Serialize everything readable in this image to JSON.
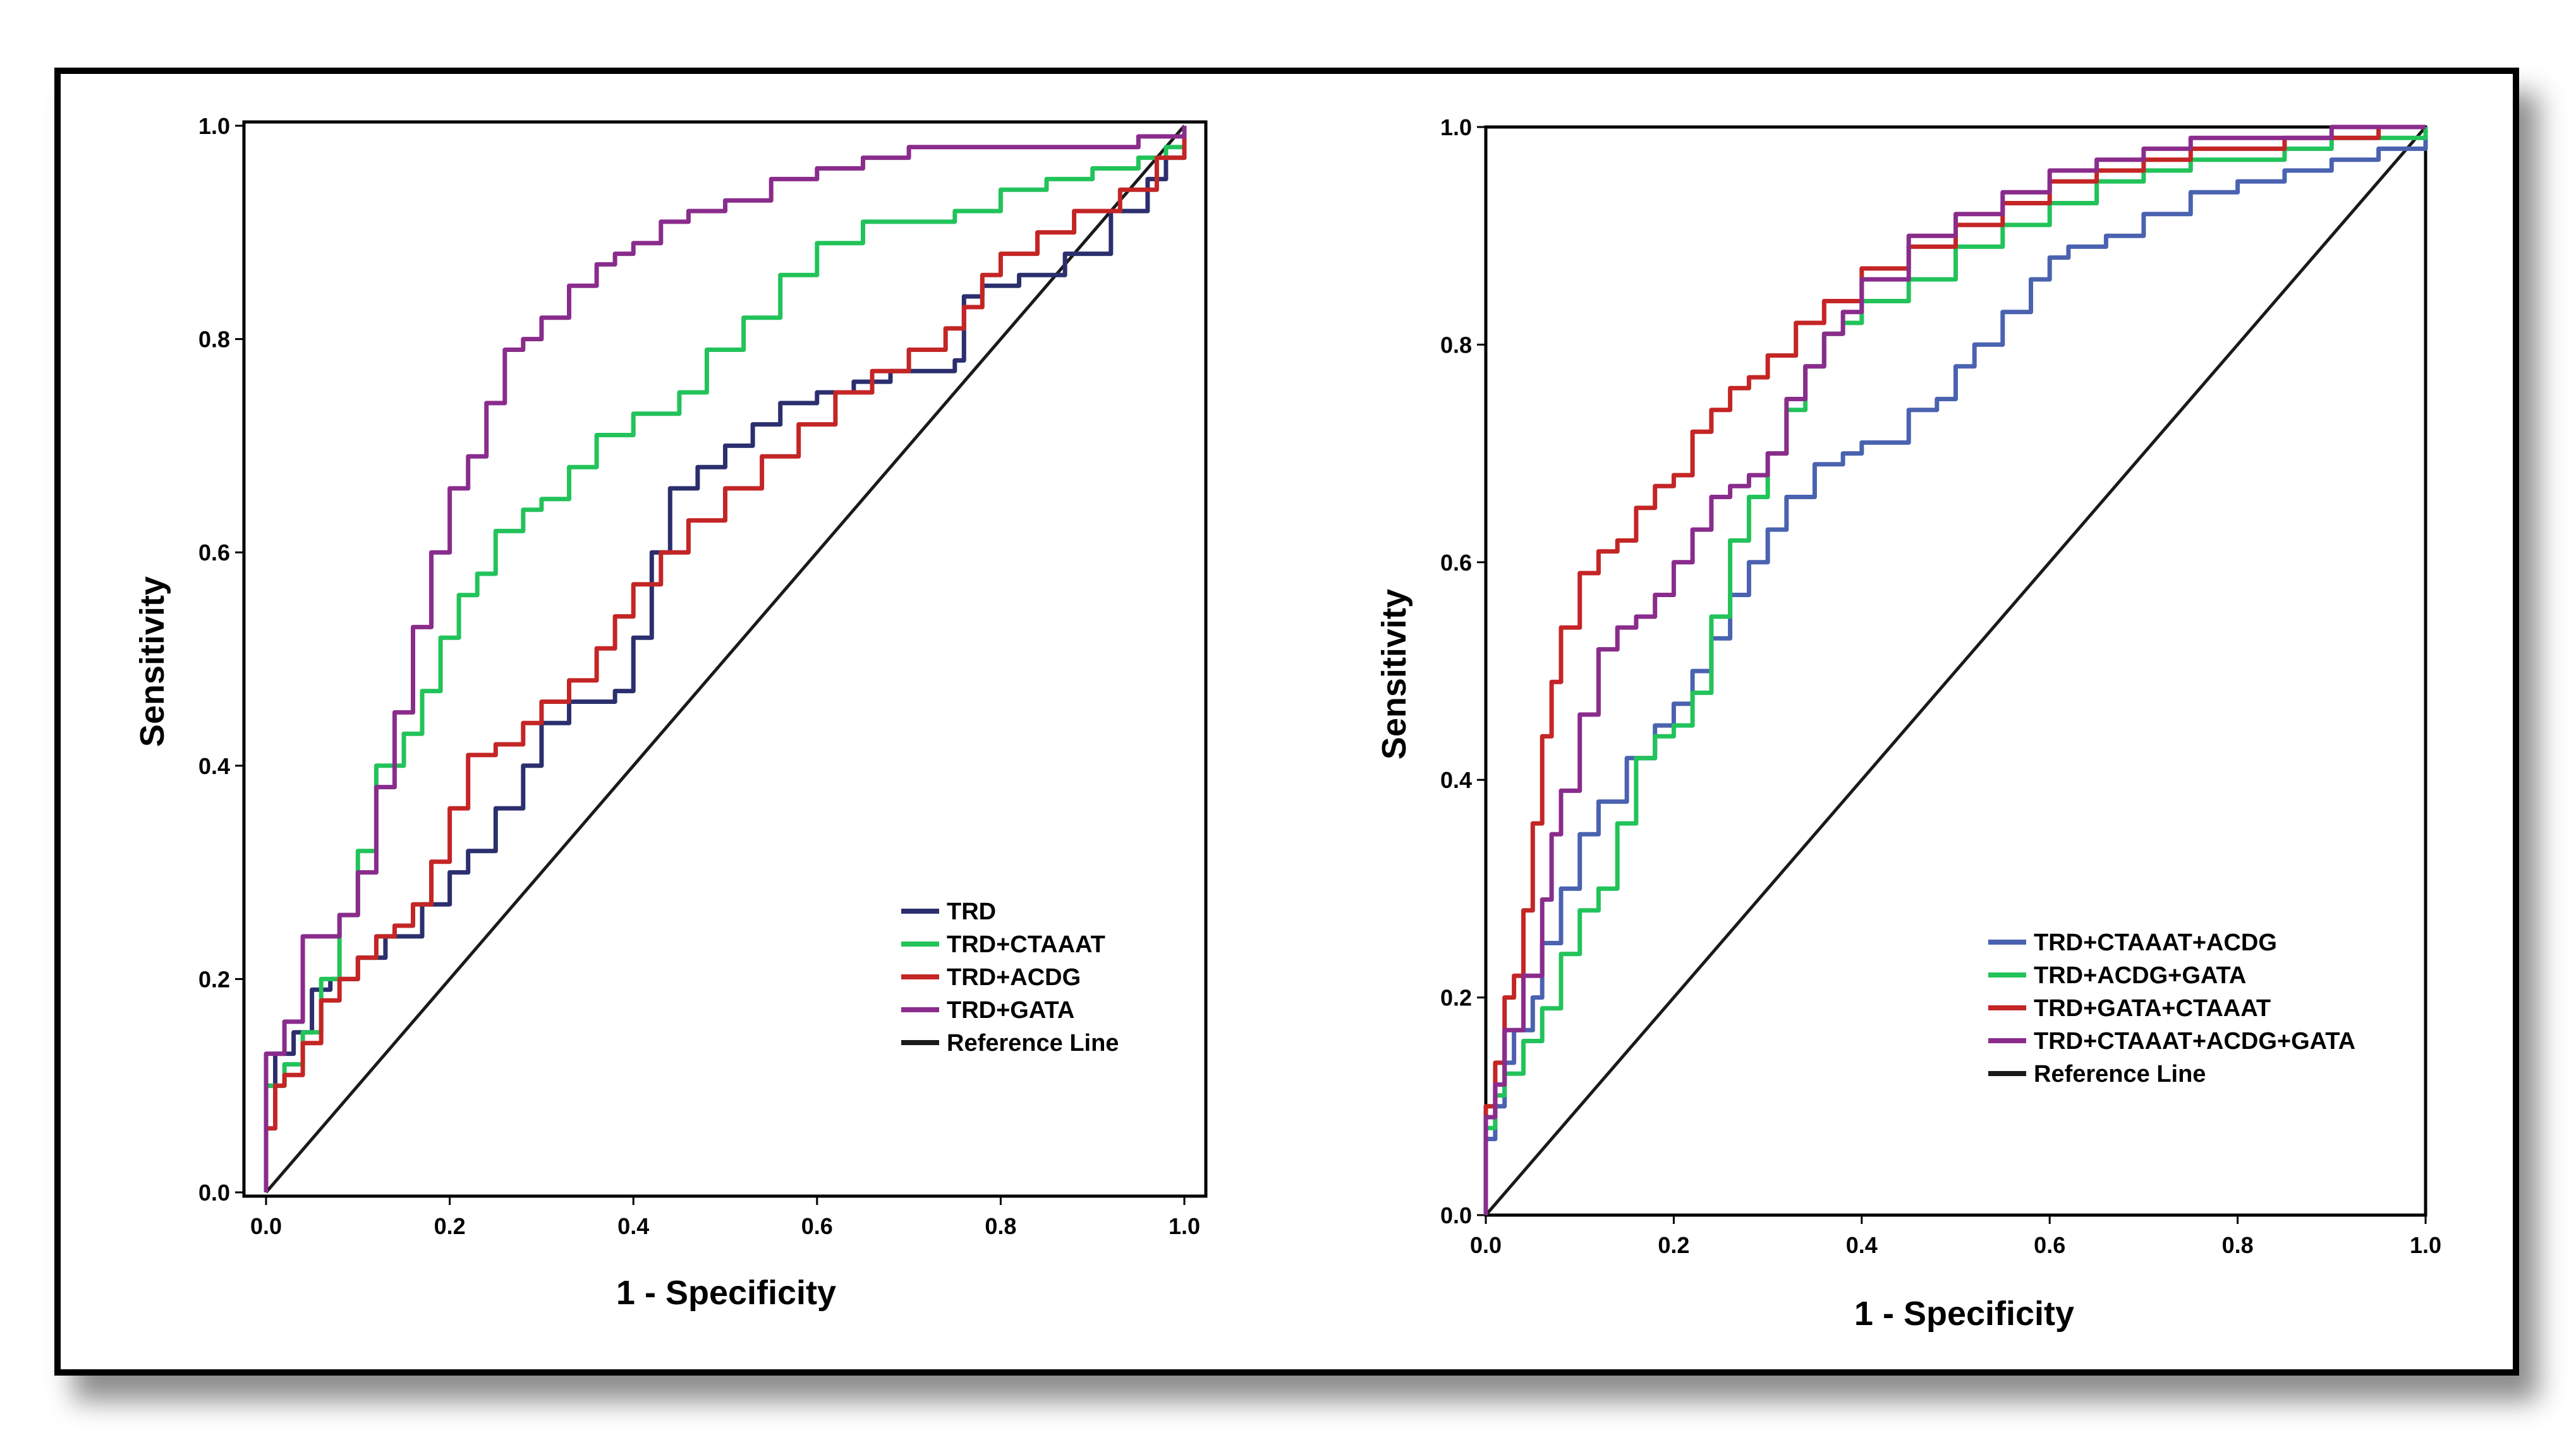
{
  "chart_data": [
    {
      "type": "line",
      "title": "",
      "xlabel": "1 - Specificity",
      "ylabel": "Sensitivity",
      "xlim": [
        0,
        1
      ],
      "ylim": [
        0,
        1
      ],
      "xticks": [
        "0.0",
        "0.2",
        "0.4",
        "0.6",
        "0.8",
        "1.0"
      ],
      "yticks": [
        "0.0",
        "0.2",
        "0.4",
        "0.6",
        "0.8",
        "1.0"
      ],
      "legend_position": "bottom-right",
      "series": [
        {
          "name": "TRD",
          "color": "#2b2f6e",
          "x": [
            0,
            0,
            0.01,
            0.03,
            0.05,
            0.07,
            0.1,
            0.13,
            0.17,
            0.2,
            0.22,
            0.25,
            0.28,
            0.3,
            0.33,
            0.38,
            0.4,
            0.42,
            0.44,
            0.47,
            0.5,
            0.53,
            0.56,
            0.6,
            0.64,
            0.68,
            0.72,
            0.75,
            0.76,
            0.78,
            0.82,
            0.87,
            0.92,
            0.96,
            0.98,
            1.0
          ],
          "y": [
            0,
            0.1,
            0.13,
            0.15,
            0.19,
            0.2,
            0.22,
            0.24,
            0.27,
            0.3,
            0.32,
            0.36,
            0.4,
            0.44,
            0.46,
            0.47,
            0.52,
            0.6,
            0.66,
            0.68,
            0.7,
            0.72,
            0.74,
            0.75,
            0.76,
            0.77,
            0.77,
            0.78,
            0.84,
            0.85,
            0.86,
            0.88,
            0.92,
            0.95,
            0.97,
            1.0
          ]
        },
        {
          "name": "TRD+CTAAAT",
          "color": "#22c35a",
          "x": [
            0,
            0,
            0.02,
            0.04,
            0.06,
            0.08,
            0.1,
            0.12,
            0.15,
            0.17,
            0.19,
            0.21,
            0.23,
            0.25,
            0.28,
            0.3,
            0.33,
            0.36,
            0.4,
            0.45,
            0.48,
            0.52,
            0.56,
            0.6,
            0.65,
            0.7,
            0.75,
            0.8,
            0.85,
            0.9,
            0.95,
            0.98,
            1.0
          ],
          "y": [
            0,
            0.1,
            0.12,
            0.15,
            0.2,
            0.26,
            0.32,
            0.4,
            0.43,
            0.47,
            0.52,
            0.56,
            0.58,
            0.62,
            0.64,
            0.65,
            0.68,
            0.71,
            0.73,
            0.75,
            0.79,
            0.82,
            0.86,
            0.89,
            0.91,
            0.91,
            0.92,
            0.94,
            0.95,
            0.96,
            0.97,
            0.98,
            1.0
          ]
        },
        {
          "name": "TRD+ACDG",
          "color": "#c42525",
          "x": [
            0,
            0,
            0.01,
            0.02,
            0.04,
            0.06,
            0.08,
            0.1,
            0.12,
            0.14,
            0.16,
            0.18,
            0.2,
            0.22,
            0.25,
            0.28,
            0.3,
            0.33,
            0.36,
            0.38,
            0.4,
            0.43,
            0.46,
            0.5,
            0.54,
            0.58,
            0.62,
            0.66,
            0.7,
            0.74,
            0.76,
            0.78,
            0.8,
            0.84,
            0.88,
            0.93,
            0.97,
            1.0
          ],
          "y": [
            0,
            0.06,
            0.1,
            0.11,
            0.14,
            0.18,
            0.2,
            0.22,
            0.24,
            0.25,
            0.27,
            0.31,
            0.36,
            0.41,
            0.42,
            0.44,
            0.46,
            0.48,
            0.51,
            0.54,
            0.57,
            0.6,
            0.63,
            0.66,
            0.69,
            0.72,
            0.75,
            0.77,
            0.79,
            0.81,
            0.83,
            0.86,
            0.88,
            0.9,
            0.92,
            0.94,
            0.97,
            1.0
          ]
        },
        {
          "name": "TRD+GATA",
          "color": "#8a2c8c",
          "x": [
            0,
            0,
            0.02,
            0.04,
            0.06,
            0.08,
            0.1,
            0.12,
            0.14,
            0.16,
            0.18,
            0.2,
            0.22,
            0.24,
            0.26,
            0.28,
            0.3,
            0.33,
            0.36,
            0.38,
            0.4,
            0.43,
            0.46,
            0.5,
            0.55,
            0.6,
            0.65,
            0.7,
            0.75,
            0.8,
            0.85,
            0.9,
            0.95,
            1.0
          ],
          "y": [
            0,
            0.13,
            0.16,
            0.24,
            0.24,
            0.26,
            0.3,
            0.38,
            0.45,
            0.53,
            0.6,
            0.66,
            0.69,
            0.74,
            0.79,
            0.8,
            0.82,
            0.85,
            0.87,
            0.88,
            0.89,
            0.91,
            0.92,
            0.93,
            0.95,
            0.96,
            0.97,
            0.98,
            0.98,
            0.98,
            0.98,
            0.98,
            0.99,
            1.0
          ]
        },
        {
          "name": "Reference Line",
          "color": "#1a1a1a",
          "x": [
            0,
            1
          ],
          "y": [
            0,
            1
          ]
        }
      ]
    },
    {
      "type": "line",
      "title": "",
      "xlabel": "1 - Specificity",
      "ylabel": "Sensitivity",
      "xlim": [
        0,
        1
      ],
      "ylim": [
        0,
        1
      ],
      "xticks": [
        "0.0",
        "0.2",
        "0.4",
        "0.6",
        "0.8",
        "1.0"
      ],
      "yticks": [
        "0.0",
        "0.2",
        "0.4",
        "0.6",
        "0.8",
        "1.0"
      ],
      "legend_position": "bottom-right",
      "series": [
        {
          "name": "TRD+CTAAAT+ACDG",
          "color": "#4a62b0",
          "x": [
            0,
            0,
            0.01,
            0.02,
            0.03,
            0.05,
            0.06,
            0.08,
            0.1,
            0.12,
            0.15,
            0.18,
            0.2,
            0.22,
            0.24,
            0.26,
            0.28,
            0.3,
            0.32,
            0.35,
            0.38,
            0.4,
            0.45,
            0.48,
            0.5,
            0.52,
            0.55,
            0.58,
            0.6,
            0.62,
            0.66,
            0.7,
            0.75,
            0.8,
            0.85,
            0.9,
            0.95,
            1.0
          ],
          "y": [
            0,
            0.07,
            0.1,
            0.14,
            0.17,
            0.2,
            0.25,
            0.3,
            0.35,
            0.38,
            0.42,
            0.45,
            0.47,
            0.5,
            0.53,
            0.57,
            0.6,
            0.63,
            0.66,
            0.69,
            0.7,
            0.71,
            0.74,
            0.75,
            0.78,
            0.8,
            0.83,
            0.86,
            0.88,
            0.89,
            0.9,
            0.92,
            0.94,
            0.95,
            0.96,
            0.97,
            0.98,
            1.0
          ]
        },
        {
          "name": "TRD+ACDG+GATA",
          "color": "#22c35a",
          "x": [
            0,
            0,
            0.01,
            0.02,
            0.04,
            0.06,
            0.08,
            0.1,
            0.12,
            0.14,
            0.16,
            0.18,
            0.2,
            0.22,
            0.24,
            0.26,
            0.28,
            0.3,
            0.32,
            0.34,
            0.36,
            0.38,
            0.4,
            0.45,
            0.5,
            0.55,
            0.6,
            0.65,
            0.7,
            0.75,
            0.8,
            0.85,
            0.9,
            0.95,
            1.0
          ],
          "y": [
            0,
            0.08,
            0.11,
            0.13,
            0.16,
            0.19,
            0.24,
            0.28,
            0.3,
            0.36,
            0.42,
            0.44,
            0.45,
            0.48,
            0.55,
            0.62,
            0.66,
            0.7,
            0.74,
            0.78,
            0.81,
            0.82,
            0.84,
            0.86,
            0.89,
            0.91,
            0.93,
            0.95,
            0.96,
            0.97,
            0.97,
            0.98,
            0.99,
            0.99,
            1.0
          ]
        },
        {
          "name": "TRD+GATA+CTAAAT",
          "color": "#c42525",
          "x": [
            0,
            0,
            0.01,
            0.02,
            0.03,
            0.04,
            0.05,
            0.06,
            0.07,
            0.08,
            0.1,
            0.12,
            0.14,
            0.16,
            0.18,
            0.2,
            0.22,
            0.24,
            0.26,
            0.28,
            0.3,
            0.33,
            0.36,
            0.4,
            0.45,
            0.5,
            0.55,
            0.6,
            0.65,
            0.7,
            0.75,
            0.8,
            0.85,
            0.9,
            0.95,
            1.0
          ],
          "y": [
            0,
            0.1,
            0.14,
            0.2,
            0.22,
            0.28,
            0.36,
            0.44,
            0.49,
            0.54,
            0.59,
            0.61,
            0.62,
            0.65,
            0.67,
            0.68,
            0.72,
            0.74,
            0.76,
            0.77,
            0.79,
            0.82,
            0.84,
            0.87,
            0.89,
            0.91,
            0.93,
            0.95,
            0.96,
            0.97,
            0.98,
            0.98,
            0.99,
            0.99,
            1.0,
            1.0
          ]
        },
        {
          "name": "TRD+CTAAAT+ACDG+GATA",
          "color": "#8a2c8c",
          "x": [
            0,
            0,
            0.01,
            0.02,
            0.04,
            0.06,
            0.07,
            0.08,
            0.1,
            0.12,
            0.14,
            0.16,
            0.18,
            0.2,
            0.22,
            0.24,
            0.26,
            0.28,
            0.3,
            0.32,
            0.34,
            0.36,
            0.38,
            0.4,
            0.45,
            0.5,
            0.55,
            0.6,
            0.65,
            0.7,
            0.75,
            0.8,
            0.85,
            0.9,
            0.95,
            1.0
          ],
          "y": [
            0,
            0.09,
            0.12,
            0.17,
            0.22,
            0.29,
            0.35,
            0.39,
            0.46,
            0.52,
            0.54,
            0.55,
            0.57,
            0.6,
            0.63,
            0.66,
            0.67,
            0.68,
            0.7,
            0.75,
            0.78,
            0.81,
            0.83,
            0.86,
            0.9,
            0.92,
            0.94,
            0.96,
            0.97,
            0.98,
            0.99,
            0.99,
            0.99,
            1.0,
            1.0,
            1.0
          ]
        },
        {
          "name": "Reference Line",
          "color": "#1a1a1a",
          "x": [
            0,
            1
          ],
          "y": [
            0,
            1
          ]
        }
      ]
    }
  ]
}
